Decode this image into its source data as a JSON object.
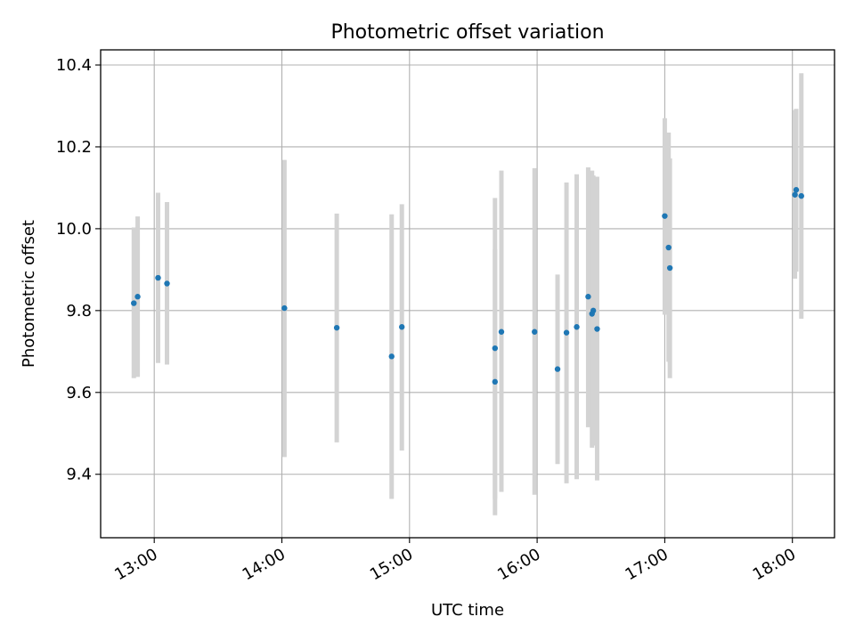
{
  "chart_data": {
    "type": "scatter",
    "title": "Photometric offset variation",
    "xlabel": "UTC time",
    "ylabel": "Photometric offset",
    "grid": true,
    "legend": "none",
    "x_unit": "hours",
    "xlim": [
      12.58,
      18.33
    ],
    "ylim": [
      9.245,
      10.437
    ],
    "x_ticks": [
      {
        "value": 13,
        "label": "13:00"
      },
      {
        "value": 14,
        "label": "14:00"
      },
      {
        "value": 15,
        "label": "15:00"
      },
      {
        "value": 16,
        "label": "16:00"
      },
      {
        "value": 17,
        "label": "17:00"
      },
      {
        "value": 18,
        "label": "18:00"
      }
    ],
    "y_ticks": [
      {
        "value": 9.4,
        "label": "9.4"
      },
      {
        "value": 9.6,
        "label": "9.6"
      },
      {
        "value": 9.8,
        "label": "9.8"
      },
      {
        "value": 10.0,
        "label": "10.0"
      },
      {
        "value": 10.2,
        "label": "10.2"
      },
      {
        "value": 10.4,
        "label": "10.4"
      }
    ],
    "colors": {
      "point": "#1f77b4",
      "errorbar": "#d3d3d3",
      "grid": "#b0b0b0",
      "axis": "#000000"
    },
    "points": [
      {
        "x": 12.84,
        "y": 9.818,
        "low": 9.635,
        "high": 10.003
      },
      {
        "x": 12.87,
        "y": 9.834,
        "low": 9.638,
        "high": 10.03
      },
      {
        "x": 13.03,
        "y": 9.88,
        "low": 9.672,
        "high": 10.088
      },
      {
        "x": 13.1,
        "y": 9.866,
        "low": 9.668,
        "high": 10.065
      },
      {
        "x": 14.02,
        "y": 9.806,
        "low": 9.442,
        "high": 10.168
      },
      {
        "x": 14.43,
        "y": 9.758,
        "low": 9.478,
        "high": 10.037
      },
      {
        "x": 14.86,
        "y": 9.688,
        "low": 9.34,
        "high": 10.035
      },
      {
        "x": 14.94,
        "y": 9.76,
        "low": 9.458,
        "high": 10.06
      },
      {
        "x": 15.67,
        "y": 9.708,
        "low": 9.34,
        "high": 10.075
      },
      {
        "x": 15.67,
        "y": 9.626,
        "low": 9.3,
        "high": 9.95
      },
      {
        "x": 15.72,
        "y": 9.748,
        "low": 9.357,
        "high": 10.142
      },
      {
        "x": 15.98,
        "y": 9.748,
        "low": 9.35,
        "high": 10.148
      },
      {
        "x": 16.16,
        "y": 9.657,
        "low": 9.425,
        "high": 9.888
      },
      {
        "x": 16.23,
        "y": 9.746,
        "low": 9.378,
        "high": 10.113
      },
      {
        "x": 16.31,
        "y": 9.76,
        "low": 9.388,
        "high": 10.133
      },
      {
        "x": 16.4,
        "y": 9.834,
        "low": 9.515,
        "high": 10.15
      },
      {
        "x": 16.43,
        "y": 9.792,
        "low": 9.465,
        "high": 10.142
      },
      {
        "x": 16.44,
        "y": 9.8,
        "low": 9.47,
        "high": 10.13
      },
      {
        "x": 16.47,
        "y": 9.755,
        "low": 9.385,
        "high": 10.127
      },
      {
        "x": 17.0,
        "y": 10.031,
        "low": 9.79,
        "high": 10.27
      },
      {
        "x": 17.03,
        "y": 9.954,
        "low": 9.675,
        "high": 10.235
      },
      {
        "x": 17.04,
        "y": 9.904,
        "low": 9.635,
        "high": 10.172
      },
      {
        "x": 18.02,
        "y": 10.083,
        "low": 9.878,
        "high": 10.29
      },
      {
        "x": 18.03,
        "y": 10.095,
        "low": 9.895,
        "high": 10.293
      },
      {
        "x": 18.07,
        "y": 10.08,
        "low": 9.78,
        "high": 10.38
      }
    ]
  }
}
